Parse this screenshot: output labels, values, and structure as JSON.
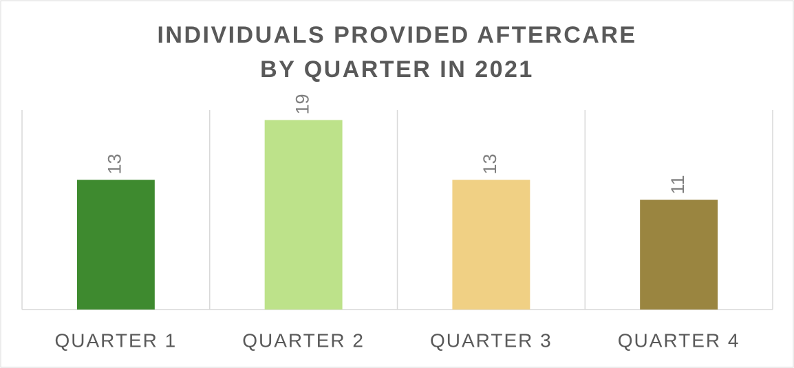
{
  "chart_data": {
    "type": "bar",
    "title": [
      "INDIVIDUALS PROVIDED AFTERCARE",
      "BY QUARTER IN 2021"
    ],
    "categories": [
      "QUARTER 1",
      "QUARTER 2",
      "QUARTER 3",
      "QUARTER 4"
    ],
    "values": [
      13,
      19,
      13,
      11
    ],
    "colors": [
      "#3e8a2f",
      "#bde28a",
      "#f0d084",
      "#9a8540"
    ],
    "ylim": [
      0,
      20
    ]
  }
}
